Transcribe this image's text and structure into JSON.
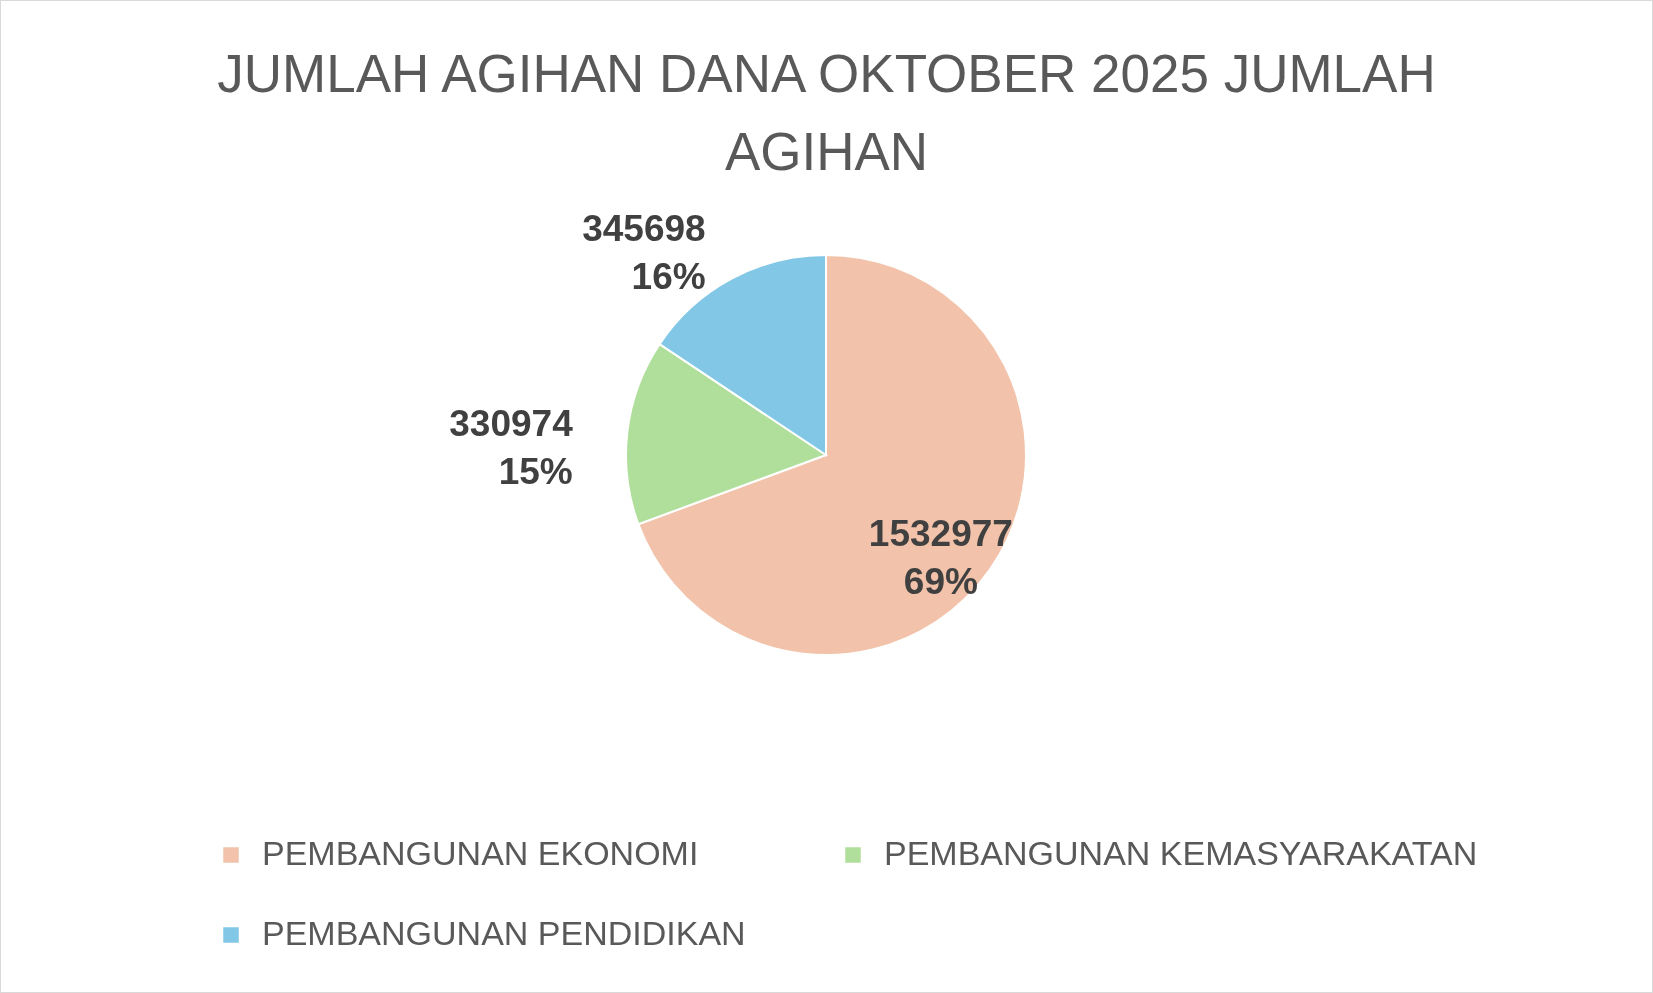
{
  "chart_data": {
    "type": "pie",
    "title": "JUMLAH AGIHAN DANA OKTOBER 2025 JUMLAH AGIHAN",
    "categories": [
      "PEMBANGUNAN EKONOMI",
      "PEMBANGUNAN KEMASYARAKATAN",
      "PEMBANGUNAN PENDIDIKAN"
    ],
    "values": [
      1532977,
      330974,
      345698
    ],
    "colors": [
      "#f2c3aa",
      "#b0df9b",
      "#83c7e7"
    ],
    "value_labels": [
      "1532977\n69%",
      "330974\n15%",
      "345698\n16%"
    ],
    "legend": "bottom"
  }
}
